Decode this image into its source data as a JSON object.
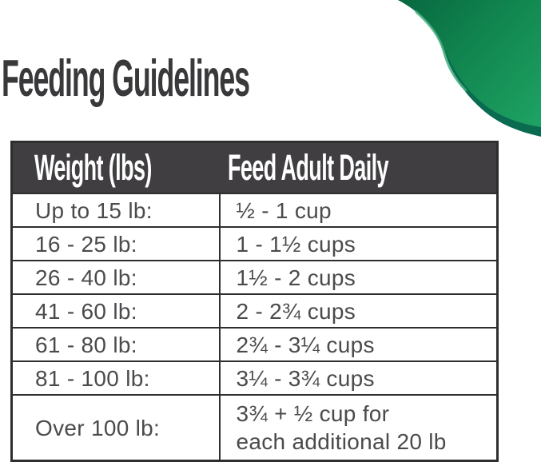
{
  "page": {
    "title": "Feeding Guidelines"
  },
  "colors": {
    "title_color": "#39383a",
    "header_bg": "#403e41",
    "header_text": "#ffffff",
    "text_color": "#4b4a4d",
    "border_color": "#2e2d30",
    "accent_green": "#12864f",
    "accent_green_dark": "#0a6b50",
    "accent_green_light": "#1ea263"
  },
  "decor": {
    "corner_swoosh": "green-curved-swoosh-top-right"
  },
  "table": {
    "headers": [
      "Weight (lbs)",
      "Feed Adult Daily"
    ],
    "rows": [
      [
        "Up to 15 lb:",
        "½ - 1 cup"
      ],
      [
        "16 - 25 lb:",
        "1 - 1½ cups"
      ],
      [
        "26 - 40 lb:",
        "1½ - 2 cups"
      ],
      [
        "41 - 60 lb:",
        "2 - 2¾ cups"
      ],
      [
        "61 - 80 lb:",
        "2¾ - 3¼ cups"
      ],
      [
        "81 - 100 lb:",
        "3¼ - 3¾ cups"
      ],
      [
        "Over 100 lb:",
        "3¾ + ½ cup for\neach additional 20 lb"
      ]
    ]
  }
}
